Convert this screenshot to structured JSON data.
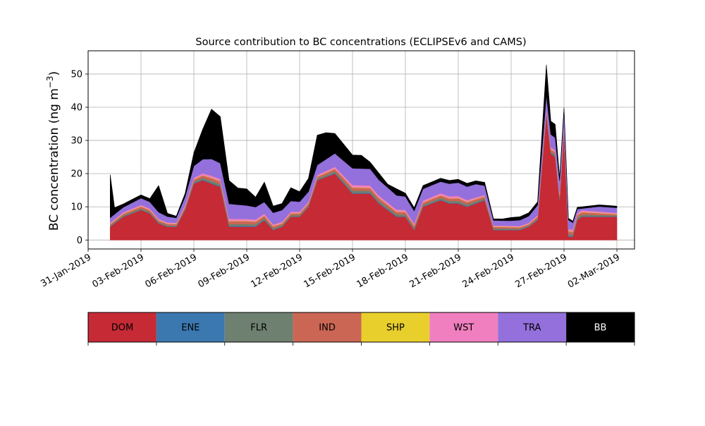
{
  "chart_data": {
    "type": "area",
    "stacked": true,
    "title": "Source contribution to BC concentrations (ECLIPSEv6 and CAMS)",
    "ylabel": "BC concentration (ng m",
    "ylabel_superscript": "−3",
    "ylabel_close": ")",
    "xlabel": "",
    "ylim": [
      -2.7,
      57
    ],
    "xlim": [
      "2019-01-31",
      "2019-03-03"
    ],
    "grid": true,
    "y_ticks": [
      0,
      10,
      20,
      30,
      40,
      50
    ],
    "x_ticks": [
      "31-Jan-2019",
      "03-Feb-2019",
      "06-Feb-2019",
      "09-Feb-2019",
      "12-Feb-2019",
      "15-Feb-2019",
      "18-Feb-2019",
      "21-Feb-2019",
      "24-Feb-2019",
      "27-Feb-2019",
      "02-Mar-2019"
    ],
    "legend": {
      "placement": "bottom",
      "style": "colorbar",
      "entries": [
        "DOM",
        "ENE",
        "FLR",
        "IND",
        "SHP",
        "WST",
        "TRA",
        "BB"
      ]
    },
    "series": [
      {
        "name": "DOM",
        "color": "#c62a35",
        "x": [
          "2019-02-01 06:00",
          "2019-02-01 12:00",
          "2019-02-02 00:00",
          "2019-02-02 12:00",
          "2019-02-03 00:00",
          "2019-02-03 12:00",
          "2019-02-04 00:00",
          "2019-02-04 12:00",
          "2019-02-05 00:00",
          "2019-02-05 12:00",
          "2019-02-06 00:00",
          "2019-02-06 12:00",
          "2019-02-07 00:00",
          "2019-02-07 12:00",
          "2019-02-08 00:00",
          "2019-02-08 12:00",
          "2019-02-09 00:00",
          "2019-02-09 12:00",
          "2019-02-10 00:00",
          "2019-02-10 12:00",
          "2019-02-11 00:00",
          "2019-02-11 12:00",
          "2019-02-12 00:00",
          "2019-02-12 12:00",
          "2019-02-13 00:00",
          "2019-02-13 12:00",
          "2019-02-14 00:00",
          "2019-02-14 12:00",
          "2019-02-15 00:00",
          "2019-02-15 12:00",
          "2019-02-16 00:00",
          "2019-02-16 12:00",
          "2019-02-17 00:00",
          "2019-02-17 12:00",
          "2019-02-18 00:00",
          "2019-02-18 12:00",
          "2019-02-19 00:00",
          "2019-02-19 12:00",
          "2019-02-20 00:00",
          "2019-02-20 12:00",
          "2019-02-21 00:00",
          "2019-02-21 12:00",
          "2019-02-22 00:00",
          "2019-02-22 12:00",
          "2019-02-23 00:00",
          "2019-02-23 12:00",
          "2019-02-24 00:00",
          "2019-02-24 12:00",
          "2019-02-25 00:00",
          "2019-02-25 12:00",
          "2019-02-26 00:00",
          "2019-02-26 06:00",
          "2019-02-26 12:00",
          "2019-02-26 18:00",
          "2019-02-27 00:00",
          "2019-02-27 06:00",
          "2019-02-27 12:00",
          "2019-02-27 18:00",
          "2019-02-28 00:00",
          "2019-02-28 12:00",
          "2019-03-01 00:00",
          "2019-03-01 12:00",
          "2019-03-02 00:00"
        ],
        "values": [
          4,
          5,
          7,
          8,
          9,
          8,
          5,
          4,
          4,
          9,
          17,
          18,
          17,
          16,
          4,
          4,
          4,
          4,
          6,
          3,
          4,
          7,
          7,
          10,
          18,
          19,
          20,
          17,
          14,
          14,
          14,
          11,
          9,
          7,
          7,
          3,
          10,
          11,
          12,
          11,
          11,
          10,
          11,
          12,
          3,
          3,
          3,
          3,
          4,
          6,
          38,
          26,
          25,
          12,
          33,
          1,
          1,
          6,
          7,
          7,
          7,
          7,
          7
        ]
      },
      {
        "name": "ENE",
        "color": "#3b78b0",
        "x": [
          "2019-02-01 06:00",
          "2019-02-03 00:00",
          "2019-02-05 00:00",
          "2019-02-07 00:00",
          "2019-02-09 00:00",
          "2019-02-11 00:00",
          "2019-02-13 00:00",
          "2019-02-15 00:00",
          "2019-02-17 00:00",
          "2019-02-19 00:00",
          "2019-02-21 00:00",
          "2019-02-23 00:00",
          "2019-02-25 00:00",
          "2019-02-27 00:00",
          "2019-03-02 00:00"
        ],
        "values": [
          0.1,
          0.1,
          0.1,
          0.2,
          0.2,
          0.1,
          0.1,
          0.2,
          0.2,
          0.1,
          0.2,
          0.1,
          0.1,
          0.2,
          0.1
        ]
      },
      {
        "name": "FLR",
        "color": "#6e8070",
        "x": [
          "2019-02-01 06:00",
          "2019-02-03 00:00",
          "2019-02-05 00:00",
          "2019-02-07 00:00",
          "2019-02-09 00:00",
          "2019-02-11 00:00",
          "2019-02-13 00:00",
          "2019-02-15 00:00",
          "2019-02-17 00:00",
          "2019-02-19 00:00",
          "2019-02-21 00:00",
          "2019-02-23 00:00",
          "2019-02-25 00:00",
          "2019-02-27 00:00",
          "2019-03-02 00:00"
        ],
        "values": [
          0.3,
          0.4,
          0.3,
          0.6,
          0.6,
          0.4,
          0.4,
          0.7,
          0.6,
          0.5,
          0.6,
          0.4,
          0.3,
          0.6,
          0.3
        ]
      },
      {
        "name": "IND",
        "color": "#cb6655",
        "x": [
          "2019-02-01 06:00",
          "2019-02-03 00:00",
          "2019-02-05 00:00",
          "2019-02-07 00:00",
          "2019-02-09 00:00",
          "2019-02-11 00:00",
          "2019-02-13 00:00",
          "2019-02-15 00:00",
          "2019-02-17 00:00",
          "2019-02-19 00:00",
          "2019-02-21 00:00",
          "2019-02-23 00:00",
          "2019-02-25 00:00",
          "2019-02-27 00:00",
          "2019-03-02 00:00"
        ],
        "values": [
          0.4,
          0.6,
          0.4,
          0.9,
          0.9,
          0.5,
          0.6,
          0.9,
          0.8,
          0.7,
          0.8,
          0.5,
          0.4,
          0.9,
          0.4
        ]
      },
      {
        "name": "SHP",
        "color": "#e8cf2c",
        "x": [
          "2019-02-01 06:00",
          "2019-02-03 00:00",
          "2019-02-05 00:00",
          "2019-02-07 00:00",
          "2019-02-09 00:00",
          "2019-02-11 00:00",
          "2019-02-13 00:00",
          "2019-02-15 00:00",
          "2019-02-17 00:00",
          "2019-02-19 00:00",
          "2019-02-21 00:00",
          "2019-02-23 00:00",
          "2019-02-25 00:00",
          "2019-02-27 00:00",
          "2019-03-02 00:00"
        ],
        "values": [
          0.1,
          0.1,
          0.1,
          0.1,
          0.1,
          0.1,
          0.1,
          0.1,
          0.1,
          0.1,
          0.1,
          0.1,
          0.1,
          0.1,
          0.1
        ]
      },
      {
        "name": "WST",
        "color": "#f07fbf",
        "x": [
          "2019-02-01 06:00",
          "2019-02-03 00:00",
          "2019-02-05 00:00",
          "2019-02-07 00:00",
          "2019-02-09 00:00",
          "2019-02-11 00:00",
          "2019-02-13 00:00",
          "2019-02-15 00:00",
          "2019-02-17 00:00",
          "2019-02-19 00:00",
          "2019-02-21 00:00",
          "2019-02-23 00:00",
          "2019-02-25 00:00",
          "2019-02-27 00:00",
          "2019-03-02 00:00"
        ],
        "values": [
          0.3,
          0.4,
          0.3,
          0.6,
          0.6,
          0.4,
          0.4,
          0.7,
          0.6,
          0.5,
          0.6,
          0.3,
          0.3,
          0.6,
          0.3
        ]
      },
      {
        "name": "TRA",
        "color": "#9370db",
        "x": [
          "2019-02-01 06:00",
          "2019-02-02 00:00",
          "2019-02-03 00:00",
          "2019-02-04 00:00",
          "2019-02-05 00:00",
          "2019-02-06 00:00",
          "2019-02-07 00:00",
          "2019-02-08 00:00",
          "2019-02-09 00:00",
          "2019-02-10 00:00",
          "2019-02-11 00:00",
          "2019-02-12 00:00",
          "2019-02-13 00:00",
          "2019-02-14 00:00",
          "2019-02-15 00:00",
          "2019-02-16 00:00",
          "2019-02-17 00:00",
          "2019-02-18 00:00",
          "2019-02-19 00:00",
          "2019-02-20 00:00",
          "2019-02-21 00:00",
          "2019-02-22 00:00",
          "2019-02-23 00:00",
          "2019-02-24 00:00",
          "2019-02-25 00:00",
          "2019-02-26 00:00",
          "2019-02-27 00:00",
          "2019-02-28 00:00",
          "2019-03-01 00:00",
          "2019-03-02 00:00"
        ],
        "values": [
          1.5,
          1.5,
          2,
          2,
          1.5,
          3.5,
          5,
          4.5,
          4,
          3.5,
          3.5,
          3,
          3,
          4,
          5,
          5,
          4.5,
          4,
          3.5,
          3.5,
          4,
          4,
          1.5,
          1.5,
          2,
          4,
          3.5,
          0.5,
          1.5,
          1.5
        ]
      },
      {
        "name": "BB",
        "color": "#000000",
        "x": [
          "2019-02-01 06:00",
          "2019-02-01 12:00",
          "2019-02-02 00:00",
          "2019-02-02 12:00",
          "2019-02-03 00:00",
          "2019-02-03 12:00",
          "2019-02-04 00:00",
          "2019-02-04 12:00",
          "2019-02-05 00:00",
          "2019-02-05 12:00",
          "2019-02-06 00:00",
          "2019-02-06 12:00",
          "2019-02-07 00:00",
          "2019-02-07 12:00",
          "2019-02-08 00:00",
          "2019-02-08 12:00",
          "2019-02-09 00:00",
          "2019-02-09 12:00",
          "2019-02-10 00:00",
          "2019-02-10 12:00",
          "2019-02-11 00:00",
          "2019-02-11 12:00",
          "2019-02-12 00:00",
          "2019-02-12 12:00",
          "2019-02-13 00:00",
          "2019-02-13 12:00",
          "2019-02-14 00:00",
          "2019-02-14 12:00",
          "2019-02-15 00:00",
          "2019-02-15 12:00",
          "2019-02-16 00:00",
          "2019-02-16 12:00",
          "2019-02-17 00:00",
          "2019-02-17 12:00",
          "2019-02-18 00:00",
          "2019-02-18 12:00",
          "2019-02-19 00:00",
          "2019-02-19 12:00",
          "2019-02-20 00:00",
          "2019-02-20 12:00",
          "2019-02-21 00:00",
          "2019-02-21 12:00",
          "2019-02-22 00:00",
          "2019-02-22 12:00",
          "2019-02-23 00:00",
          "2019-02-23 12:00",
          "2019-02-24 00:00",
          "2019-02-24 12:00",
          "2019-02-25 00:00",
          "2019-02-25 12:00",
          "2019-02-26 00:00",
          "2019-02-26 06:00",
          "2019-02-26 12:00",
          "2019-02-26 18:00",
          "2019-02-27 00:00",
          "2019-02-27 06:00",
          "2019-02-27 12:00",
          "2019-02-27 18:00",
          "2019-02-28 00:00",
          "2019-02-28 12:00",
          "2019-03-01 00:00",
          "2019-03-01 12:00",
          "2019-03-02 00:00"
        ],
        "values": [
          13,
          2,
          1,
          1,
          1,
          1,
          8,
          1,
          0.5,
          1,
          4,
          9,
          15,
          14,
          7,
          5,
          5,
          3,
          6,
          2,
          2,
          4,
          3,
          4,
          9,
          8,
          6,
          5,
          4,
          4,
          2,
          2,
          1,
          2,
          1,
          1,
          1,
          1,
          1,
          1,
          1,
          1,
          1,
          1,
          0.5,
          0.5,
          1,
          1,
          1,
          1,
          9,
          4,
          4,
          1,
          1,
          0.5,
          0.5,
          0.5,
          0.5,
          0.5,
          0.5,
          0.5,
          0.5
        ]
      }
    ]
  }
}
